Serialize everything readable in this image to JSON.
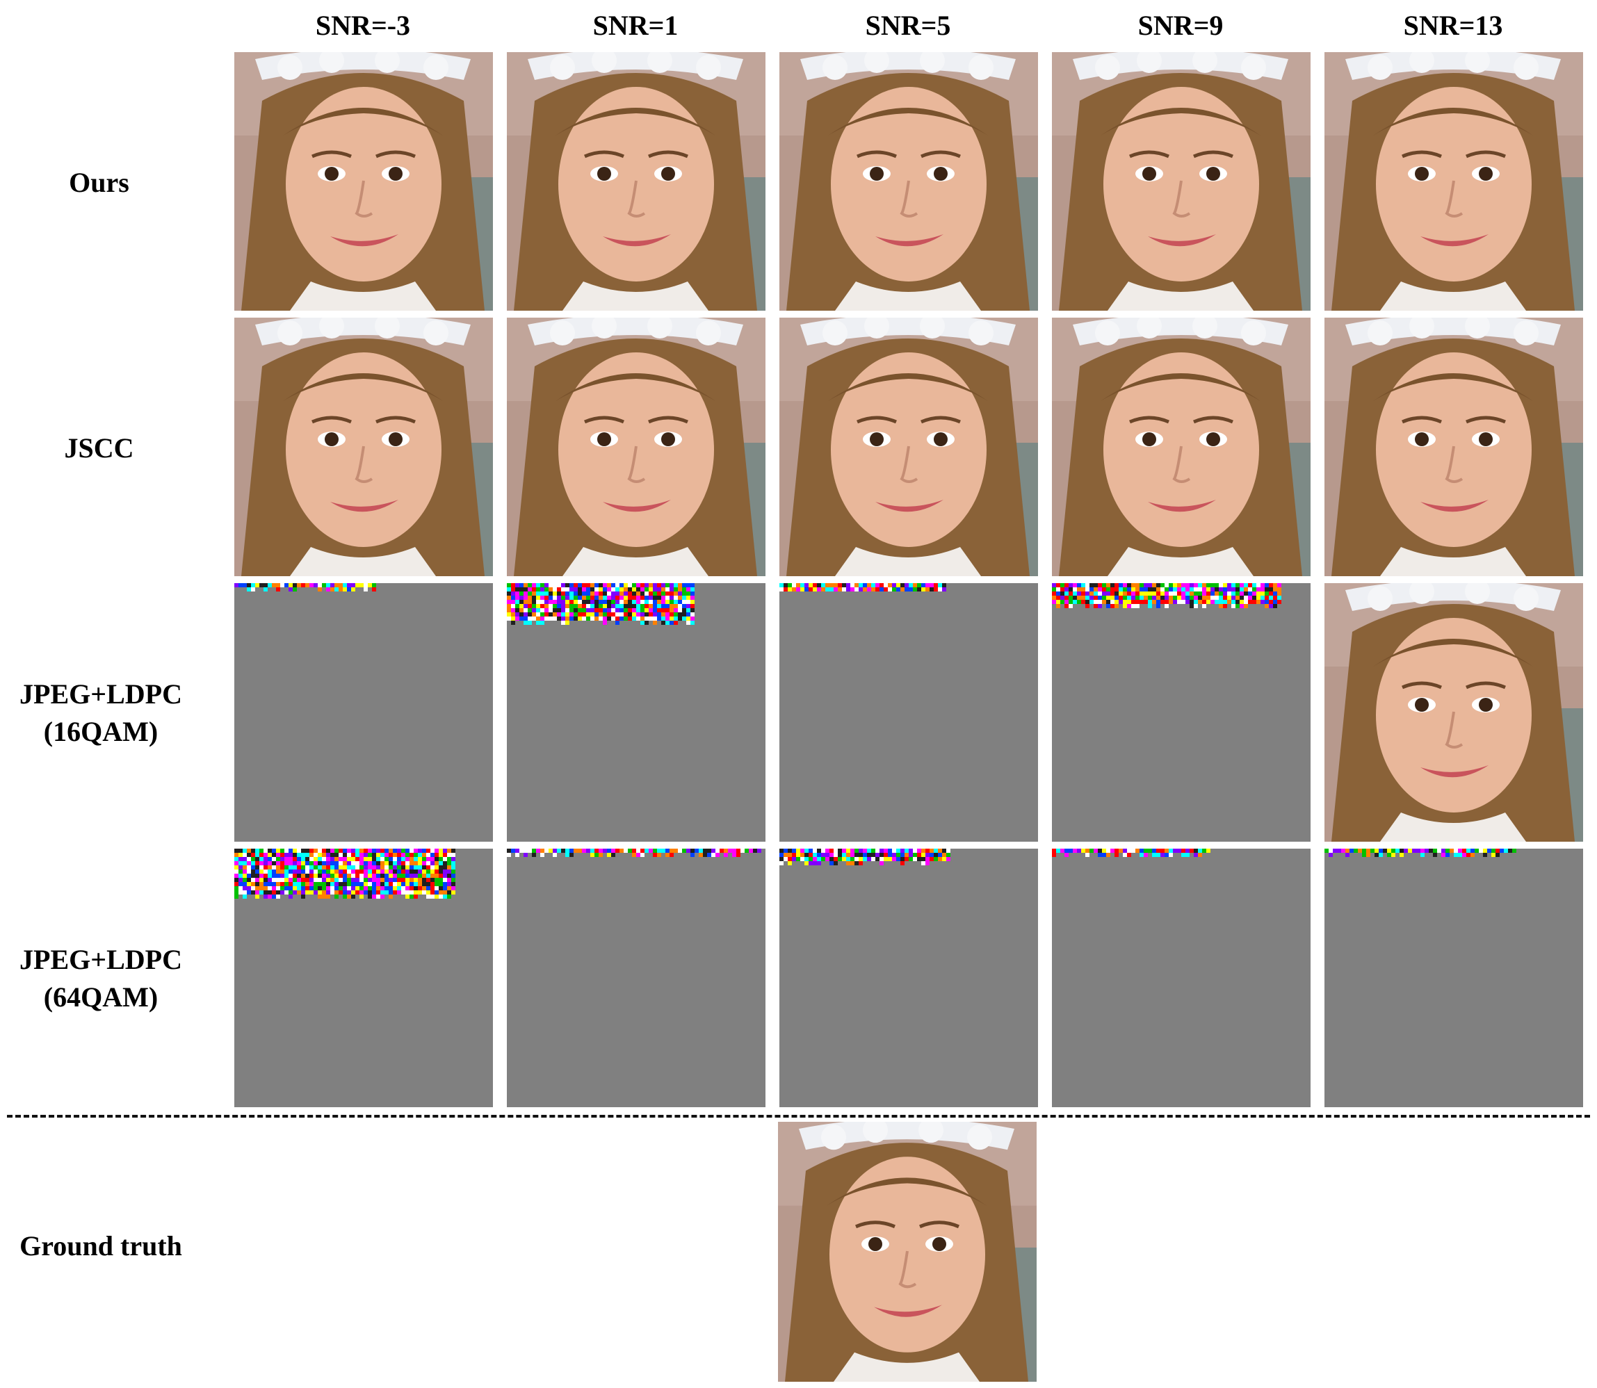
{
  "columns": [
    {
      "label": "SNR=-3"
    },
    {
      "label": "SNR=1"
    },
    {
      "label": "SNR=5"
    },
    {
      "label": "SNR=9"
    },
    {
      "label": "SNR=13"
    }
  ],
  "rows": [
    {
      "label_line1": "Ours",
      "label_line2": ""
    },
    {
      "label_line1": "JSCC",
      "label_line2": ""
    },
    {
      "label_line1": "JPEG+LDPC",
      "label_line2": "(16QAM)"
    },
    {
      "label_line1": "JPEG+LDPC",
      "label_line2": "(64QAM)"
    }
  ],
  "ground_truth": {
    "label": "Ground truth"
  },
  "tiles": {
    "ours": [
      "face",
      "face",
      "face",
      "face",
      "face"
    ],
    "jscc": [
      "face",
      "face",
      "face",
      "face",
      "face"
    ],
    "qam16": [
      "corrupt",
      "corrupt",
      "corrupt",
      "corrupt",
      "face"
    ],
    "qam64": [
      "corrupt",
      "corrupt",
      "corrupt",
      "corrupt",
      "corrupt"
    ]
  },
  "colors": {
    "failed_gray": "#808080",
    "skin": "#e9b79a",
    "hair": "#8a6238",
    "background": "#b79a8e",
    "headband": "#eef0f4"
  }
}
